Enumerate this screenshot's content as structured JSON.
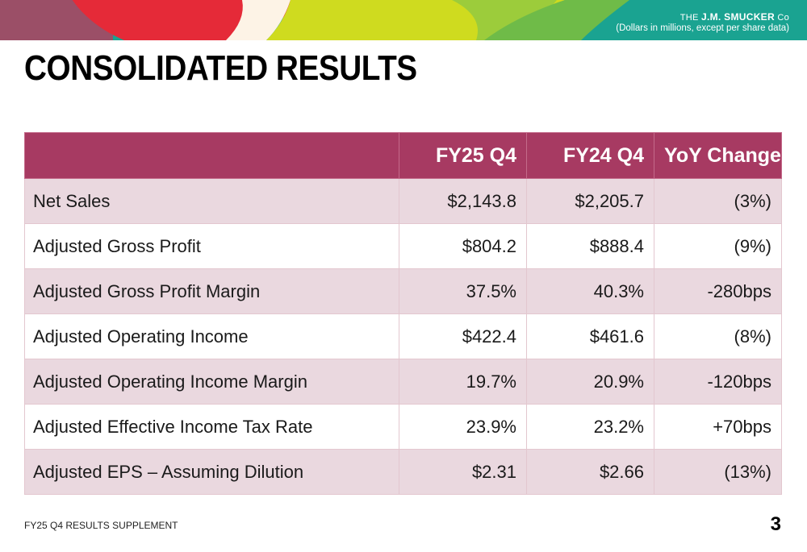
{
  "header": {
    "brand_prefix": "THE",
    "brand_name": "J.M. SMUCKER",
    "brand_suffix": "Co",
    "units_note": "(Dollars in millions, except per share data)"
  },
  "colors": {
    "banner_gray_mauve": "#9b4f67",
    "banner_red": "#e52a38",
    "banner_cream": "#fdf3e6",
    "banner_lime": "#cfdb1f",
    "banner_green": "#6fbb48",
    "banner_teal": "#1aa391",
    "table_header": "#a73a62",
    "table_band": "#ead8df"
  },
  "page_title": "CONSOLIDATED RESULTS",
  "table": {
    "columns": [
      "",
      "FY25 Q4",
      "FY24 Q4",
      "YoY Change"
    ],
    "rows": [
      [
        "Net Sales",
        "$2,143.8",
        "$2,205.7",
        "(3%)"
      ],
      [
        "Adjusted Gross Profit",
        "$804.2",
        "$888.4",
        "(9%)"
      ],
      [
        "Adjusted Gross Profit Margin",
        "37.5%",
        "40.3%",
        "-280bps"
      ],
      [
        "Adjusted Operating Income",
        "$422.4",
        "$461.6",
        "(8%)"
      ],
      [
        "Adjusted Operating Income Margin",
        "19.7%",
        "20.9%",
        "-120bps"
      ],
      [
        "Adjusted Effective Income Tax Rate",
        "23.9%",
        "23.2%",
        "+70bps"
      ],
      [
        "Adjusted EPS – Assuming Dilution",
        "$2.31",
        "$2.66",
        "(13%)"
      ]
    ]
  },
  "footer": {
    "label": "FY25 Q4 RESULTS SUPPLEMENT",
    "page_number": "3"
  }
}
